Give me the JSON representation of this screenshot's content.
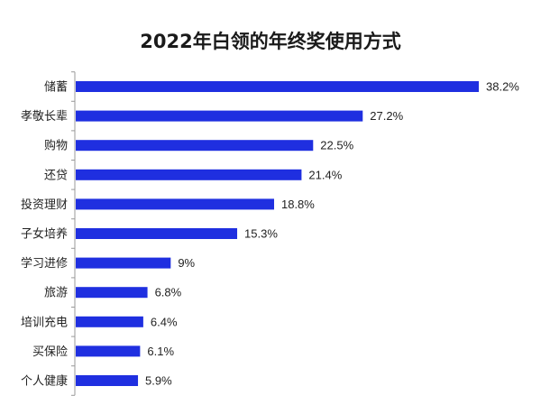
{
  "chart_data": {
    "type": "bar",
    "orientation": "horizontal",
    "title": "2022年白领的年终奖使用方式",
    "categories": [
      "储蓄",
      "孝敬长辈",
      "购物",
      "还贷",
      "投资理财",
      "子女培养",
      "学习进修",
      "旅游",
      "培训充电",
      "买保险",
      "个人健康"
    ],
    "values": [
      38.2,
      27.2,
      22.5,
      21.4,
      18.8,
      15.3,
      9,
      6.8,
      6.4,
      6.1,
      5.9
    ],
    "value_labels": [
      "38.2%",
      "27.2%",
      "22.5%",
      "21.4%",
      "18.8%",
      "15.3%",
      "9%",
      "6.8%",
      "6.4%",
      "6.1%",
      "5.9%"
    ],
    "xlim": [
      0,
      40
    ],
    "grid": false,
    "bar_color": "#1f2fe0",
    "axis_color": "#999999"
  }
}
